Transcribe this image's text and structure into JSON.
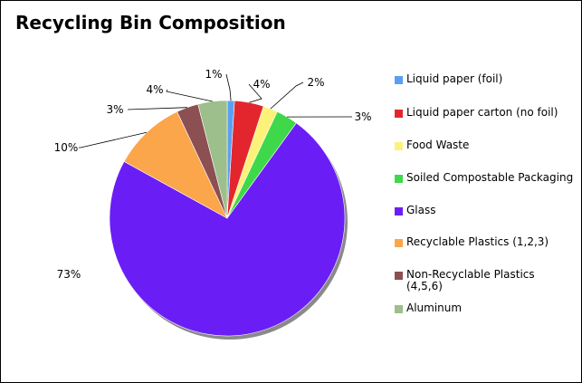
{
  "title": "Recycling Bin Composition",
  "chart_data": {
    "type": "pie",
    "title": "Recycling Bin Composition",
    "legend_position": "right",
    "slices": [
      {
        "label": "Liquid paper (foil)",
        "value": 1,
        "display": "1%",
        "color": "#5aa0f0"
      },
      {
        "label": "Liquid paper carton (no foil)",
        "value": 4,
        "display": "4%",
        "color": "#e3262d"
      },
      {
        "label": "Food Waste",
        "value": 2,
        "display": "2%",
        "color": "#fcf27a"
      },
      {
        "label": "Soiled Compostable Packaging",
        "value": 3,
        "display": "3%",
        "color": "#3fd84a"
      },
      {
        "label": "Glass",
        "value": 73,
        "display": "73%",
        "color": "#6a1ef5"
      },
      {
        "label": "Recyclable Plastics (1,2,3)",
        "value": 10,
        "display": "10%",
        "color": "#fba64b"
      },
      {
        "label": "Non-Recyclable Plastics (4,5,6)",
        "value": 3,
        "display": "3%",
        "color": "#8c4f52"
      },
      {
        "label": "Aluminum",
        "value": 4,
        "display": "4%",
        "color": "#9cbf8b"
      }
    ]
  }
}
